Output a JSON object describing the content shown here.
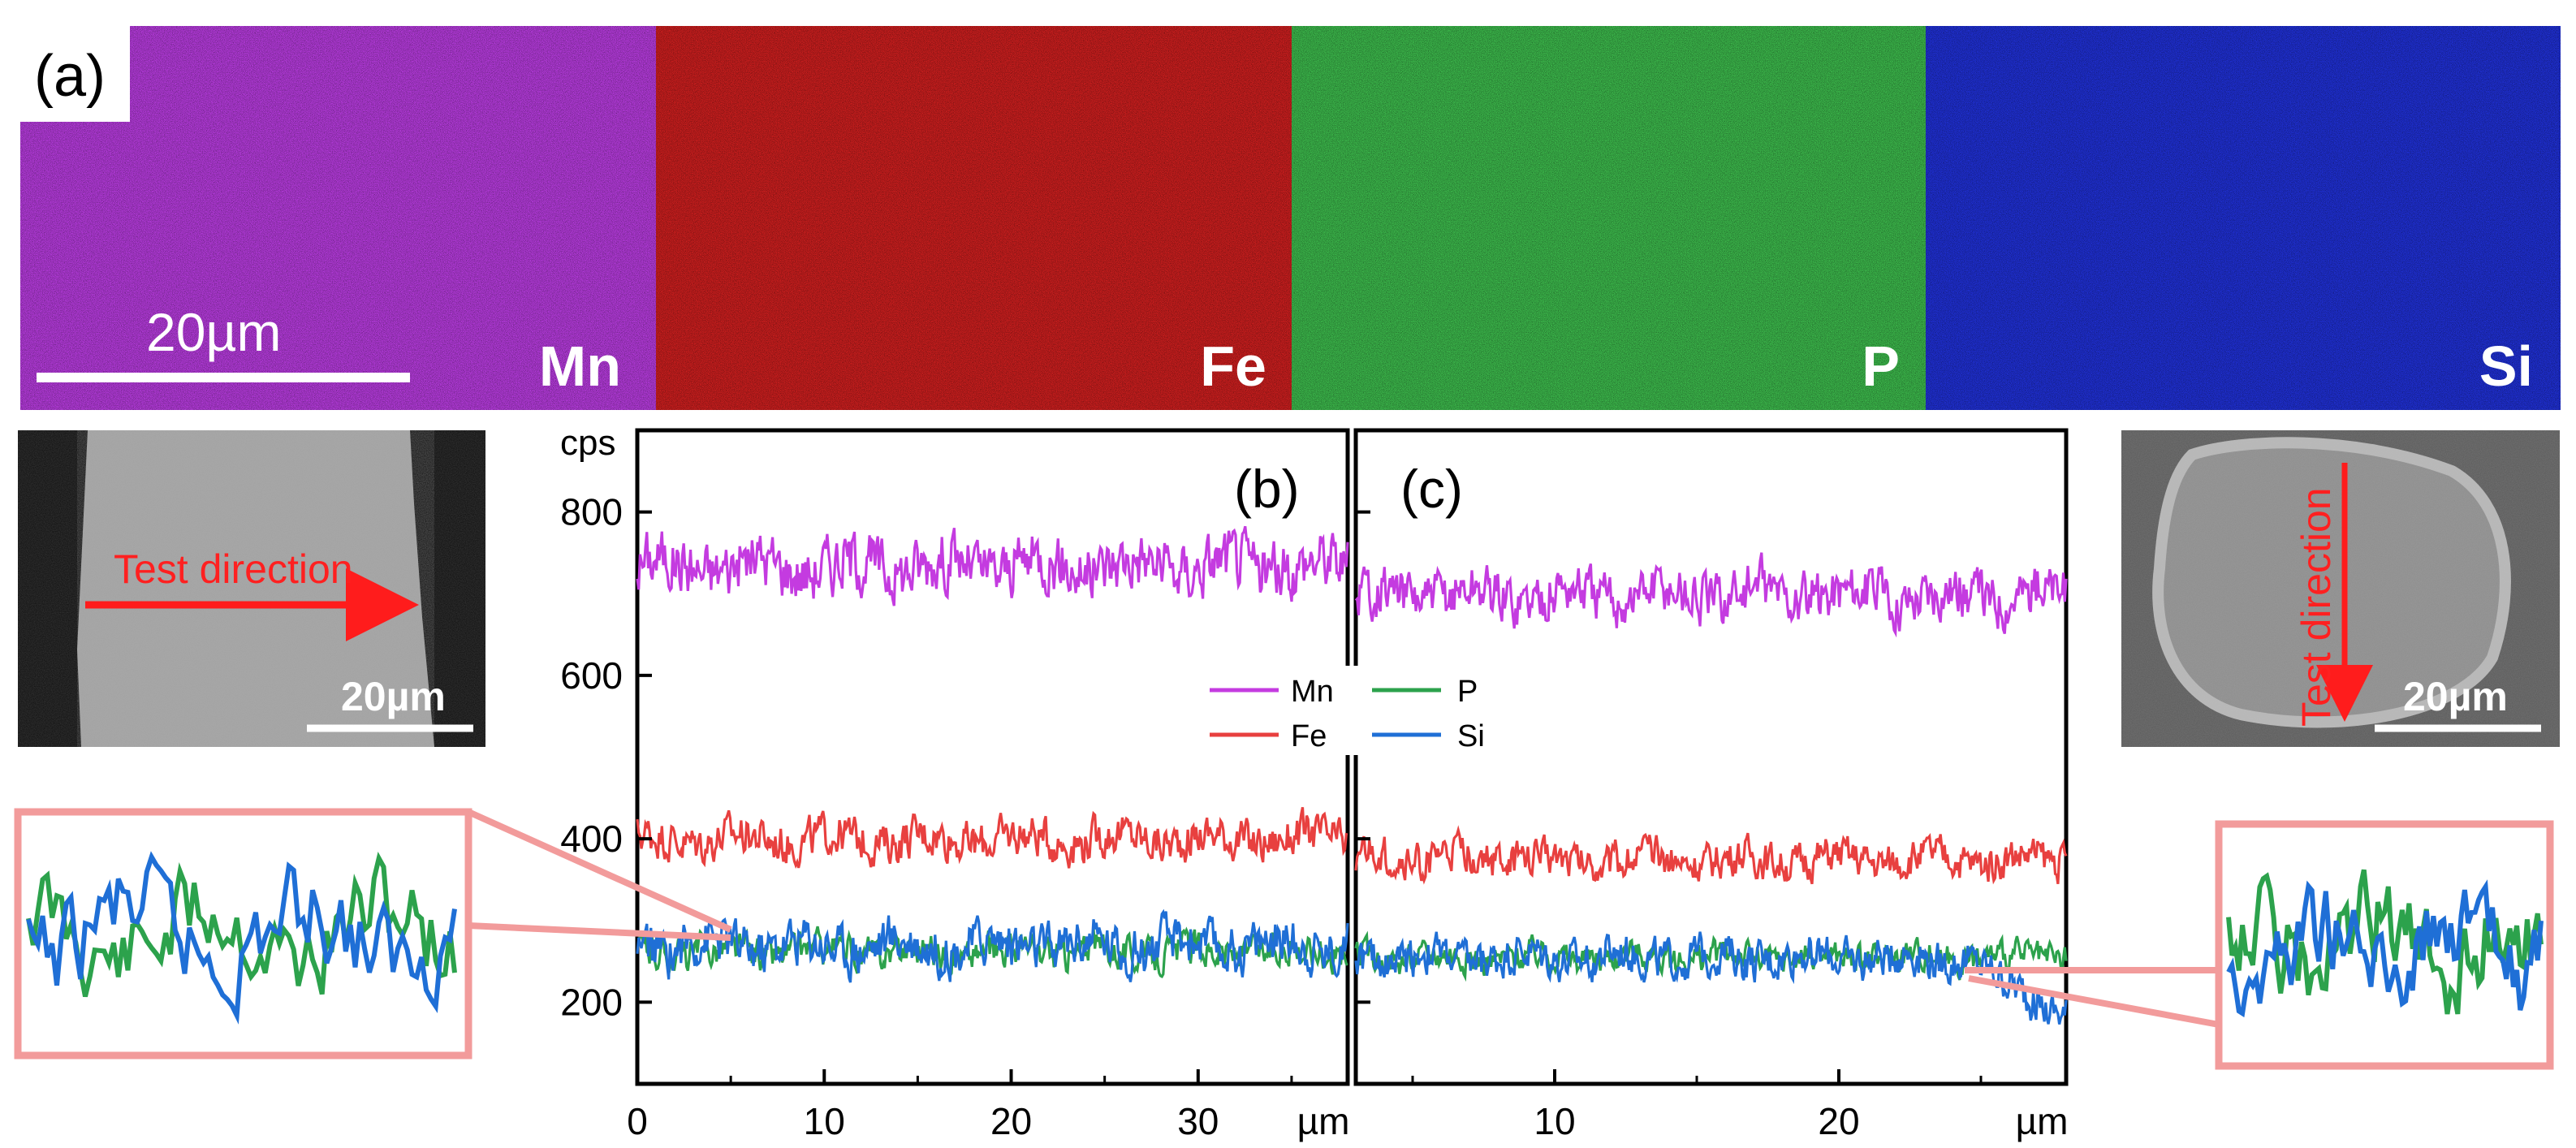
{
  "figure": {
    "panel_a_label": "(a)",
    "panel_b_label": "(b)",
    "panel_c_label": "(c)",
    "scale_bar_text": "20µm",
    "maps": [
      {
        "element": "Mn",
        "color": "#b23ad8"
      },
      {
        "element": "Fe",
        "color": "#c81e1e"
      },
      {
        "element": "P",
        "color": "#3bb54a"
      },
      {
        "element": "Si",
        "color": "#1f2fd0"
      }
    ],
    "sem_left": {
      "arrow_text": "Test direction",
      "scale_text": "20µm"
    },
    "sem_right": {
      "arrow_text": "Test direction",
      "scale_text": "20µm"
    }
  },
  "chart_data": [
    {
      "type": "line",
      "panel": "(b)",
      "xlabel": "µm",
      "ylabel": "cps",
      "xlim": [
        0,
        38
      ],
      "ylim": [
        100,
        900
      ],
      "x_ticks": [
        0,
        10,
        20,
        30
      ],
      "y_ticks": [
        200,
        400,
        600,
        800
      ],
      "series": [
        {
          "name": "Mn",
          "color": "#c43be0",
          "mean": 735,
          "noise": 32
        },
        {
          "name": "Fe",
          "color": "#e8403f",
          "mean": 400,
          "noise": 22
        },
        {
          "name": "P",
          "color": "#2ca24c",
          "mean": 262,
          "noise": 18
        },
        {
          "name": "Si",
          "color": "#1f6fd6",
          "mean": 270,
          "noise": 26
        }
      ]
    },
    {
      "type": "line",
      "panel": "(c)",
      "xlabel": "µm",
      "ylabel": "cps",
      "xlim": [
        3,
        28
      ],
      "ylim": [
        100,
        900
      ],
      "x_ticks": [
        10,
        20
      ],
      "y_ticks": [
        200,
        400,
        600,
        800
      ],
      "series": [
        {
          "name": "Mn",
          "color": "#c43be0",
          "mean": 700,
          "noise": 28
        },
        {
          "name": "Fe",
          "color": "#e8403f",
          "mean": 375,
          "noise": 20
        },
        {
          "name": "P",
          "color": "#2ca24c",
          "mean": 255,
          "noise": 16
        },
        {
          "name": "Si",
          "color": "#1f6fd6",
          "mean": 255,
          "noise": 22
        }
      ]
    }
  ],
  "legend": [
    {
      "name": "Mn",
      "color": "#c43be0"
    },
    {
      "name": "P",
      "color": "#2ca24c"
    },
    {
      "name": "Fe",
      "color": "#e8403f"
    },
    {
      "name": "Si",
      "color": "#1f6fd6"
    }
  ]
}
